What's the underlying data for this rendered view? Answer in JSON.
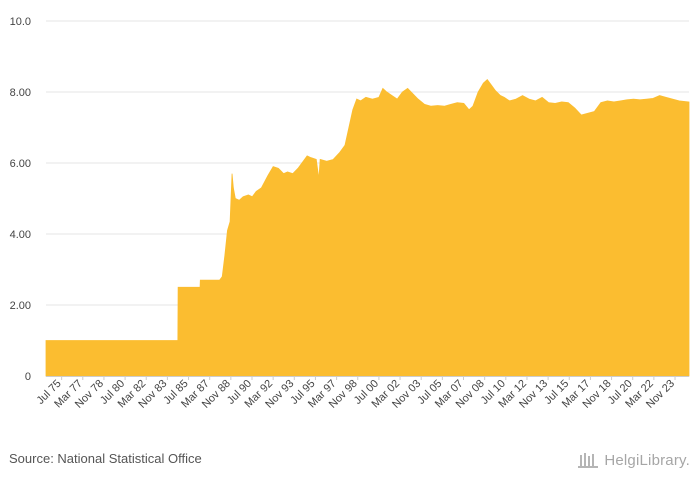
{
  "chart_data": {
    "type": "area",
    "color": "#fbbd30",
    "ylim": [
      0,
      10
    ],
    "yticks": [
      {
        "value": 0,
        "label": "0"
      },
      {
        "value": 2,
        "label": "2.00"
      },
      {
        "value": 4,
        "label": "4.00"
      },
      {
        "value": 6,
        "label": "6.00"
      },
      {
        "value": 8,
        "label": "8.00"
      },
      {
        "value": 10,
        "label": "10.0"
      }
    ],
    "x_start": 1975.5,
    "x_end": 2024.75,
    "xtick_labels": [
      "Jul 75",
      "Mar 77",
      "Nov 78",
      "Jul 80",
      "Mar 82",
      "Nov 83",
      "Jul 85",
      "Mar 87",
      "Nov 88",
      "Jul 90",
      "Mar 92",
      "Nov 93",
      "Jul 95",
      "Mar 97",
      "Nov 98",
      "Jul 00",
      "Mar 02",
      "Nov 03",
      "Jul 05",
      "Mar 07",
      "Nov 08",
      "Jul 10",
      "Mar 12",
      "Nov 13",
      "Jul 15",
      "Mar 17",
      "Nov 18",
      "Jul 20",
      "Mar 22",
      "Nov 23"
    ],
    "points": [
      [
        1975.5,
        1.0
      ],
      [
        1977.0,
        1.0
      ],
      [
        1980.0,
        1.0
      ],
      [
        1983.0,
        1.0
      ],
      [
        1985.5,
        1.0
      ],
      [
        1985.6,
        1.0
      ],
      [
        1985.62,
        2.5
      ],
      [
        1986.5,
        2.5
      ],
      [
        1987.3,
        2.5
      ],
      [
        1987.32,
        2.7
      ],
      [
        1988.0,
        2.7
      ],
      [
        1988.8,
        2.7
      ],
      [
        1989.0,
        2.8
      ],
      [
        1989.2,
        3.4
      ],
      [
        1989.4,
        4.1
      ],
      [
        1989.6,
        4.35
      ],
      [
        1989.75,
        5.7
      ],
      [
        1989.85,
        5.3
      ],
      [
        1990.0,
        5.0
      ],
      [
        1990.3,
        4.95
      ],
      [
        1990.6,
        5.05
      ],
      [
        1991.0,
        5.1
      ],
      [
        1991.3,
        5.05
      ],
      [
        1991.6,
        5.2
      ],
      [
        1992.0,
        5.3
      ],
      [
        1992.5,
        5.65
      ],
      [
        1992.9,
        5.9
      ],
      [
        1993.3,
        5.85
      ],
      [
        1993.7,
        5.7
      ],
      [
        1994.0,
        5.75
      ],
      [
        1994.4,
        5.7
      ],
      [
        1994.8,
        5.85
      ],
      [
        1995.2,
        6.05
      ],
      [
        1995.5,
        6.2
      ],
      [
        1995.8,
        6.15
      ],
      [
        1996.2,
        6.1
      ],
      [
        1996.4,
        5.55
      ],
      [
        1996.5,
        6.1
      ],
      [
        1997.0,
        6.05
      ],
      [
        1997.5,
        6.1
      ],
      [
        1998.0,
        6.3
      ],
      [
        1998.4,
        6.5
      ],
      [
        1998.7,
        7.0
      ],
      [
        1999.0,
        7.5
      ],
      [
        1999.3,
        7.8
      ],
      [
        1999.6,
        7.75
      ],
      [
        2000.0,
        7.85
      ],
      [
        2000.5,
        7.8
      ],
      [
        2001.0,
        7.85
      ],
      [
        2001.3,
        8.1
      ],
      [
        2001.6,
        8.0
      ],
      [
        2002.0,
        7.9
      ],
      [
        2002.4,
        7.8
      ],
      [
        2002.8,
        8.0
      ],
      [
        2003.2,
        8.1
      ],
      [
        2003.6,
        7.95
      ],
      [
        2004.0,
        7.8
      ],
      [
        2004.5,
        7.65
      ],
      [
        2005.0,
        7.6
      ],
      [
        2005.5,
        7.62
      ],
      [
        2006.0,
        7.6
      ],
      [
        2006.5,
        7.65
      ],
      [
        2007.0,
        7.7
      ],
      [
        2007.5,
        7.68
      ],
      [
        2007.9,
        7.5
      ],
      [
        2008.2,
        7.6
      ],
      [
        2008.6,
        8.0
      ],
      [
        2009.0,
        8.25
      ],
      [
        2009.3,
        8.35
      ],
      [
        2009.6,
        8.2
      ],
      [
        2009.9,
        8.05
      ],
      [
        2010.3,
        7.9
      ],
      [
        2010.6,
        7.85
      ],
      [
        2011.0,
        7.75
      ],
      [
        2011.5,
        7.8
      ],
      [
        2012.0,
        7.9
      ],
      [
        2012.5,
        7.8
      ],
      [
        2013.0,
        7.75
      ],
      [
        2013.5,
        7.85
      ],
      [
        2014.0,
        7.7
      ],
      [
        2014.5,
        7.68
      ],
      [
        2015.0,
        7.72
      ],
      [
        2015.5,
        7.7
      ],
      [
        2016.0,
        7.55
      ],
      [
        2016.5,
        7.35
      ],
      [
        2017.0,
        7.4
      ],
      [
        2017.5,
        7.45
      ],
      [
        2018.0,
        7.7
      ],
      [
        2018.5,
        7.75
      ],
      [
        2019.0,
        7.72
      ],
      [
        2019.5,
        7.75
      ],
      [
        2020.0,
        7.78
      ],
      [
        2020.5,
        7.8
      ],
      [
        2021.0,
        7.78
      ],
      [
        2021.5,
        7.8
      ],
      [
        2022.0,
        7.82
      ],
      [
        2022.5,
        7.9
      ],
      [
        2023.0,
        7.85
      ],
      [
        2023.5,
        7.8
      ],
      [
        2024.0,
        7.75
      ],
      [
        2024.75,
        7.72
      ]
    ]
  },
  "footer": {
    "source": "Source: National Statistical Office",
    "logo_text": "HelgiLibrary."
  }
}
